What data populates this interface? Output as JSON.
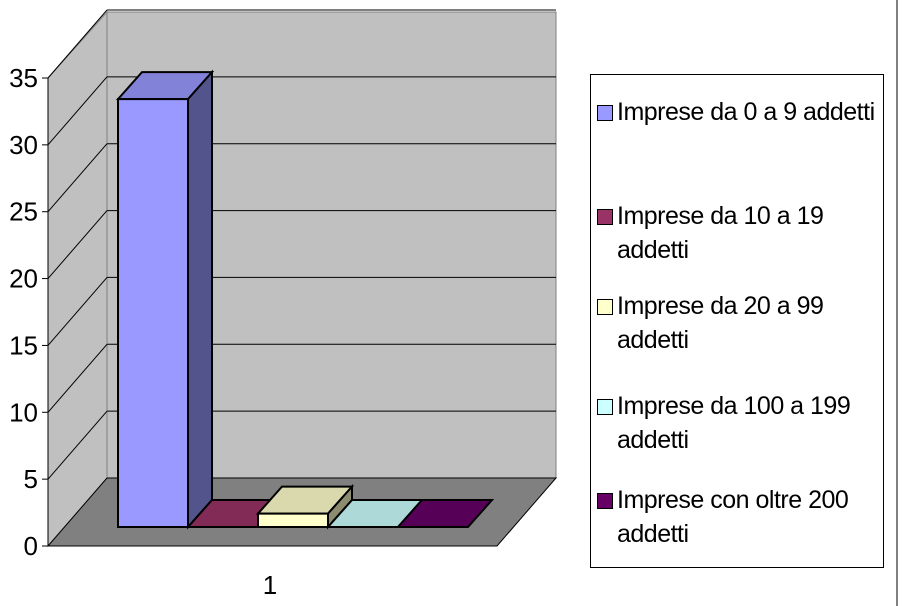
{
  "chart_data": {
    "type": "bar",
    "categories": [
      "1"
    ],
    "series": [
      {
        "name": "Imprese da 0 a 9 addetti",
        "values": [
          32
        ],
        "color": "#9999ff"
      },
      {
        "name": "Imprese da 10 a 19 addetti",
        "values": [
          0
        ],
        "color": "#993366"
      },
      {
        "name": "Imprese da 20 a 99 addetti",
        "values": [
          1
        ],
        "color": "#ffffcc"
      },
      {
        "name": "Imprese da 100 a 199 addetti",
        "values": [
          0
        ],
        "color": "#ccffff"
      },
      {
        "name": "Imprese con oltre 200 addetti",
        "values": [
          0
        ],
        "color": "#660066"
      }
    ],
    "y_ticks": [
      "0",
      "5",
      "10",
      "15",
      "20",
      "25",
      "30",
      "35"
    ],
    "ylim": [
      0,
      35
    ],
    "grid": true,
    "legend_position": "right",
    "style": "3d-column",
    "wall_color": "#c0c0c0",
    "floor_color": "#808080"
  }
}
